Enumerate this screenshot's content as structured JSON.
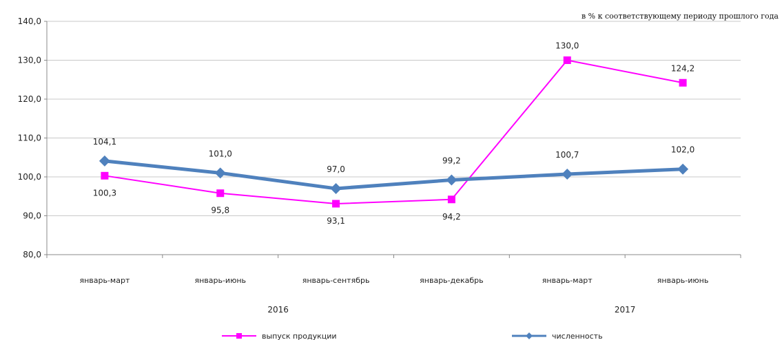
{
  "chart_data": {
    "type": "line",
    "unit_note": "в % к соответствующему периоду прошлого года",
    "categories": [
      "январь-март",
      "январь-июнь",
      "январь-сентябрь",
      "январь-декабрь",
      "январь-март",
      "январь-июнь"
    ],
    "years": [
      {
        "label": "2016",
        "from": 0,
        "to": 3
      },
      {
        "label": "2017",
        "from": 4,
        "to": 5
      }
    ],
    "ylim": [
      80,
      140
    ],
    "yticks": [
      80,
      90,
      100,
      110,
      120,
      130,
      140
    ],
    "ytick_labels": [
      "80,0",
      "90,0",
      "100,0",
      "110,0",
      "120,0",
      "130,0",
      "140,0"
    ],
    "grid": true,
    "legend": "bottom",
    "series": [
      {
        "name": "выпуск продукции",
        "color": "#ff00ff",
        "marker": "square",
        "values": [
          100.3,
          95.8,
          93.1,
          94.2,
          130.0,
          124.2
        ],
        "labels": [
          "100,3",
          "95,8",
          "93,1",
          "94,2",
          "130,0",
          "124,2"
        ]
      },
      {
        "name": "численность",
        "color": "#4f81bd",
        "marker": "diamond",
        "values": [
          104.1,
          101.0,
          97.0,
          99.2,
          100.7,
          102.0
        ],
        "labels": [
          "104,1",
          "101,0",
          "97,0",
          "99,2",
          "100,7",
          "102,0"
        ]
      }
    ]
  }
}
